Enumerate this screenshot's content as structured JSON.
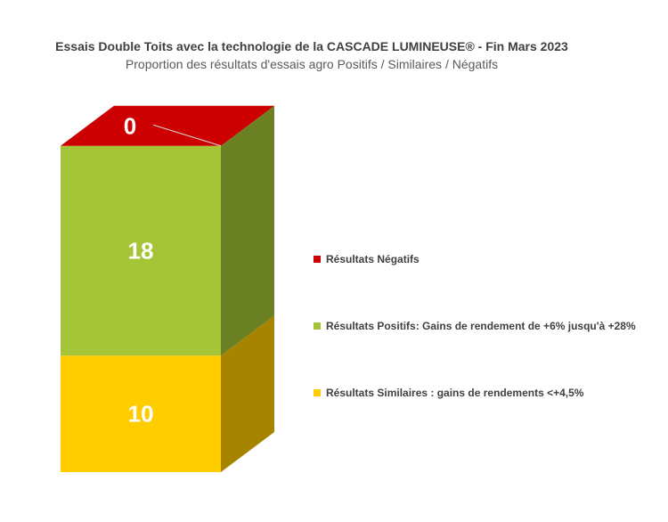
{
  "chart_data": {
    "type": "bar",
    "stacked": true,
    "three_d": true,
    "title": "Essais Double Toits avec la technologie de la CASCADE LUMINEUSE® -  Fin Mars 2023",
    "subtitle": "Proportion des résultats d'essais agro  Positifs / Similaires / Négatifs",
    "categories": [
      ""
    ],
    "series": [
      {
        "name": "Résultats Similaires : gains de rendements <+4,5%",
        "values": [
          10
        ],
        "color": "#ffcc00",
        "side_color": "#a68400"
      },
      {
        "name": "Résultats Positifs: Gains de rendement de +6% jusqu'à +28%",
        "values": [
          18
        ],
        "color": "#a6c437",
        "side_color": "#6b8023"
      },
      {
        "name": "Résultats Négatifs",
        "values": [
          0
        ],
        "color": "#cc0000",
        "side_color": "#cc0000"
      }
    ],
    "legend_order": [
      2,
      1,
      0
    ],
    "legend_position": "right",
    "grid": false,
    "xlabel": "",
    "ylabel": ""
  }
}
